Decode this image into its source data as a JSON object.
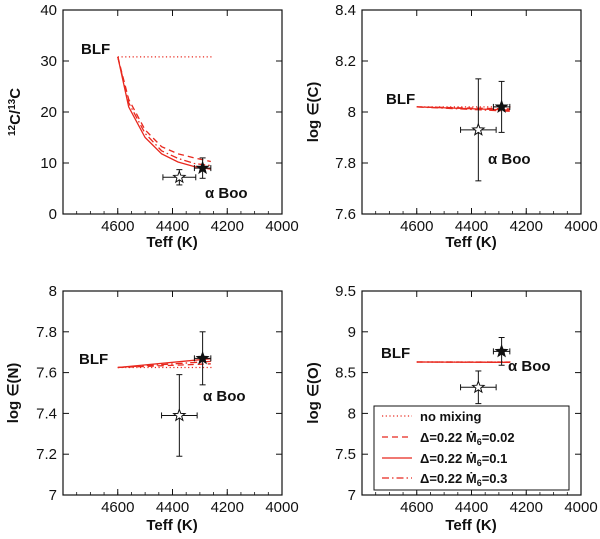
{
  "chart_data": [
    {
      "type": "line",
      "panel": "top-left",
      "xlabel": "Teff (K)",
      "ylabel": "12C/13C",
      "ylabel_parts": {
        "sup": "12",
        "a": "C/",
        "sup2": "13",
        "b": "C"
      },
      "xlim": [
        4800,
        4000
      ],
      "ylim": [
        0,
        40
      ],
      "xticks": [
        4600,
        4400,
        4200,
        4000
      ],
      "yticks": [
        0,
        10,
        20,
        30,
        40
      ],
      "annotations": {
        "blf": "BLF",
        "star": "α Boo"
      },
      "series": [
        {
          "name": "no mixing",
          "style": "dotted",
          "x": [
            4600,
            4250
          ],
          "y": [
            30.8,
            30.8
          ]
        },
        {
          "name": "Δ=0.22 Ṁ6=0.02",
          "style": "dashed",
          "x": [
            4600,
            4560,
            4500,
            4440,
            4380,
            4320,
            4260
          ],
          "y": [
            30.8,
            22.5,
            16.5,
            13.2,
            11.8,
            11.0,
            10.3
          ]
        },
        {
          "name": "Δ=0.22 Ṁ6=0.1",
          "style": "solid",
          "x": [
            4600,
            4560,
            4500,
            4440,
            4380,
            4320,
            4260
          ],
          "y": [
            30.8,
            21.0,
            15.0,
            11.8,
            10.2,
            9.3,
            8.8
          ]
        },
        {
          "name": "Δ=0.22 Ṁ6=0.3",
          "style": "dashdot",
          "x": [
            4600,
            4560,
            4500,
            4440,
            4380,
            4320,
            4260
          ],
          "y": [
            30.8,
            21.8,
            15.8,
            12.4,
            10.9,
            9.9,
            9.5
          ]
        }
      ],
      "points": [
        {
          "name": "alpha-boo-open",
          "marker": "open-star",
          "x": 4375,
          "y": 7.2,
          "xerr": 60,
          "yerr": 1.5
        },
        {
          "name": "alpha-boo-filled",
          "marker": "filled-star",
          "x": 4290,
          "y": 9.0,
          "xerr": 30,
          "yerr": 2.0
        }
      ]
    },
    {
      "type": "line",
      "panel": "top-right",
      "xlabel": "Teff (K)",
      "ylabel": "log ∈(C)",
      "xlim": [
        4800,
        4000
      ],
      "ylim": [
        7.6,
        8.4
      ],
      "xticks": [
        4600,
        4400,
        4200,
        4000
      ],
      "yticks": [
        7.6,
        7.8,
        8,
        8.2,
        8.4
      ],
      "annotations": {
        "blf": "BLF",
        "star": "α Boo"
      },
      "series": [
        {
          "name": "no mixing",
          "style": "dotted",
          "x": [
            4600,
            4250
          ],
          "y": [
            8.02,
            8.02
          ]
        },
        {
          "name": "Δ=0.22 Ṁ6=0.02",
          "style": "dashed",
          "x": [
            4600,
            4260
          ],
          "y": [
            8.02,
            8.012
          ]
        },
        {
          "name": "Δ=0.22 Ṁ6=0.1",
          "style": "solid",
          "x": [
            4600,
            4260
          ],
          "y": [
            8.02,
            8.008
          ]
        },
        {
          "name": "Δ=0.22 Ṁ6=0.3",
          "style": "dashdot",
          "x": [
            4600,
            4260
          ],
          "y": [
            8.02,
            8.003
          ]
        }
      ],
      "points": [
        {
          "name": "alpha-boo-open",
          "marker": "open-star",
          "x": 4375,
          "y": 7.93,
          "xerr": 65,
          "yerr": 0.2
        },
        {
          "name": "alpha-boo-filled",
          "marker": "filled-star",
          "x": 4290,
          "y": 8.02,
          "xerr": 30,
          "yerr": 0.1
        }
      ]
    },
    {
      "type": "line",
      "panel": "bottom-left",
      "xlabel": "Teff (K)",
      "ylabel": "log ∈(N)",
      "xlim": [
        4800,
        4000
      ],
      "ylim": [
        7,
        8
      ],
      "xticks": [
        4600,
        4400,
        4200,
        4000
      ],
      "yticks": [
        7,
        7.2,
        7.4,
        7.6,
        7.8,
        8
      ],
      "annotations": {
        "blf": "BLF",
        "star": "α Boo"
      },
      "series": [
        {
          "name": "no mixing",
          "style": "dotted",
          "x": [
            4600,
            4250
          ],
          "y": [
            7.625,
            7.625
          ]
        },
        {
          "name": "Δ=0.22 Ṁ6=0.02",
          "style": "dashed",
          "x": [
            4600,
            4260
          ],
          "y": [
            7.625,
            7.643
          ]
        },
        {
          "name": "Δ=0.22 Ṁ6=0.1",
          "style": "solid",
          "x": [
            4600,
            4260
          ],
          "y": [
            7.625,
            7.668
          ]
        },
        {
          "name": "Δ=0.22 Ṁ6=0.3",
          "style": "dashdot",
          "x": [
            4600,
            4260
          ],
          "y": [
            7.625,
            7.655
          ]
        }
      ],
      "points": [
        {
          "name": "alpha-boo-open",
          "marker": "open-star",
          "x": 4375,
          "y": 7.39,
          "xerr": 65,
          "yerr": 0.2
        },
        {
          "name": "alpha-boo-filled",
          "marker": "filled-star",
          "x": 4290,
          "y": 7.67,
          "xerr": 30,
          "yerr": 0.13
        }
      ]
    },
    {
      "type": "line",
      "panel": "bottom-right",
      "xlabel": "Teff (K)",
      "ylabel": "log ∈(O)",
      "xlim": [
        4800,
        4000
      ],
      "ylim": [
        7,
        9.5
      ],
      "xticks": [
        4600,
        4400,
        4200,
        4000
      ],
      "yticks": [
        7,
        7.5,
        8,
        8.5,
        9,
        9.5
      ],
      "annotations": {
        "blf": "BLF",
        "star": "α Boo"
      },
      "series": [
        {
          "name": "no mixing",
          "style": "dotted",
          "x": [
            4600,
            4250
          ],
          "y": [
            8.63,
            8.63
          ]
        },
        {
          "name": "Δ=0.22 Ṁ6=0.02",
          "style": "dashed",
          "x": [
            4600,
            4260
          ],
          "y": [
            8.63,
            8.63
          ]
        },
        {
          "name": "Δ=0.22 Ṁ6=0.1",
          "style": "solid",
          "x": [
            4600,
            4260
          ],
          "y": [
            8.63,
            8.625
          ]
        },
        {
          "name": "Δ=0.22 Ṁ6=0.3",
          "style": "dashdot",
          "x": [
            4600,
            4260
          ],
          "y": [
            8.63,
            8.628
          ]
        }
      ],
      "points": [
        {
          "name": "alpha-boo-open",
          "marker": "open-star",
          "x": 4375,
          "y": 8.32,
          "xerr": 65,
          "yerr": 0.2
        },
        {
          "name": "alpha-boo-filled",
          "marker": "filled-star",
          "x": 4290,
          "y": 8.76,
          "xerr": 30,
          "yerr": 0.17
        }
      ]
    }
  ],
  "legend": {
    "items": [
      {
        "style": "dotted",
        "text": "no mixing"
      },
      {
        "style": "dashed",
        "pre": "Δ=0.22 ",
        "mdot": "Ṁ",
        "sub": "6",
        "post": "=0.02"
      },
      {
        "style": "solid",
        "pre": "Δ=0.22 ",
        "mdot": "Ṁ",
        "sub": "6",
        "post": "=0.1"
      },
      {
        "style": "dashdot",
        "pre": "Δ=0.22 ",
        "mdot": "Ṁ",
        "sub": "6",
        "post": "=0.3"
      }
    ]
  },
  "colors": {
    "model": "#e8281e",
    "axis": "#111111",
    "points": "#111111"
  }
}
